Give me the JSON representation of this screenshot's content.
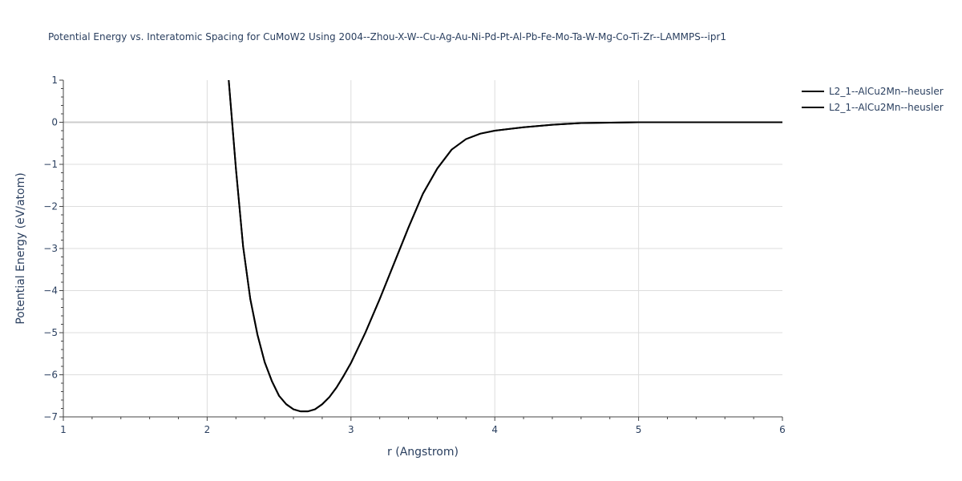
{
  "chart_data": {
    "type": "line",
    "title": "Potential Energy vs. Interatomic Spacing for CuMoW2 Using 2004--Zhou-X-W--Cu-Ag-Au-Ni-Pd-Pt-Al-Pb-Fe-Mo-Ta-W-Mg-Co-Ti-Zr--LAMMPS--ipr1",
    "xlabel": "r (Angstrom)",
    "ylabel": "Potential Energy (eV/atom)",
    "xlim": [
      1,
      6
    ],
    "ylim": [
      -7,
      1
    ],
    "x_ticks": [
      "1",
      "2",
      "3",
      "4",
      "5",
      "6"
    ],
    "y_ticks": [
      "1",
      "0",
      "−1",
      "−2",
      "−3",
      "−4",
      "−5",
      "−6",
      "−7"
    ],
    "grid": true,
    "legend_position": "top-right",
    "series": [
      {
        "name": "L2_1--AlCu2Mn--heusler",
        "color": "#000000",
        "x": [
          2.15,
          2.2,
          2.25,
          2.3,
          2.35,
          2.4,
          2.45,
          2.5,
          2.55,
          2.6,
          2.65,
          2.7,
          2.75,
          2.8,
          2.85,
          2.9,
          2.95,
          3.0,
          3.1,
          3.2,
          3.3,
          3.4,
          3.5,
          3.6,
          3.7,
          3.8,
          3.9,
          4.0,
          4.2,
          4.4,
          4.6,
          4.8,
          5.0,
          5.5,
          6.0
        ],
        "y": [
          1.0,
          -1.1,
          -2.95,
          -4.2,
          -5.05,
          -5.7,
          -6.15,
          -6.5,
          -6.7,
          -6.82,
          -6.87,
          -6.87,
          -6.82,
          -6.7,
          -6.53,
          -6.3,
          -6.02,
          -5.72,
          -5.0,
          -4.2,
          -3.35,
          -2.5,
          -1.7,
          -1.1,
          -0.65,
          -0.4,
          -0.27,
          -0.2,
          -0.12,
          -0.06,
          -0.02,
          -0.01,
          0.0,
          0.0,
          0.0
        ]
      },
      {
        "name": "L2_1--AlCu2Mn--heusler",
        "color": "#000000",
        "x": [
          2.15,
          2.2,
          2.25,
          2.3,
          2.35,
          2.4,
          2.45,
          2.5,
          2.55,
          2.6,
          2.65,
          2.7,
          2.75,
          2.8,
          2.85,
          2.9,
          2.95,
          3.0,
          3.1,
          3.2,
          3.3,
          3.4,
          3.5,
          3.6,
          3.7,
          3.8,
          3.9,
          4.0,
          4.2,
          4.4,
          4.6,
          4.8,
          5.0,
          5.5,
          6.0
        ],
        "y": [
          1.0,
          -1.1,
          -2.95,
          -4.2,
          -5.05,
          -5.7,
          -6.15,
          -6.5,
          -6.7,
          -6.82,
          -6.87,
          -6.87,
          -6.82,
          -6.7,
          -6.53,
          -6.3,
          -6.02,
          -5.72,
          -5.0,
          -4.2,
          -3.35,
          -2.5,
          -1.7,
          -1.1,
          -0.65,
          -0.4,
          -0.27,
          -0.2,
          -0.12,
          -0.06,
          -0.02,
          -0.01,
          0.0,
          0.0,
          0.0
        ]
      }
    ]
  }
}
